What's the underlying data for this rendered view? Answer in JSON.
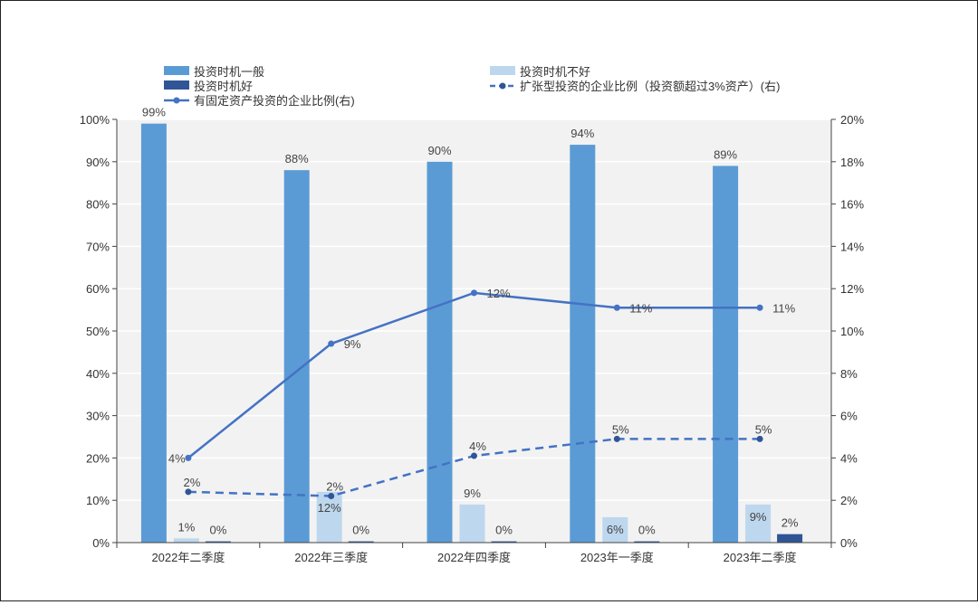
{
  "chart_data": {
    "type": "bar",
    "categories": [
      "2022年二季度",
      "2022年三季度",
      "2022年四季度",
      "2023年一季度",
      "2023年二季度"
    ],
    "series": [
      {
        "name": "投资时机一般",
        "kind": "bar",
        "axis": "left",
        "color": "#5b9bd5",
        "values": [
          99,
          88,
          90,
          94,
          89
        ],
        "labels": [
          "99%",
          "88%",
          "90%",
          "94%",
          "89%"
        ]
      },
      {
        "name": "投资时机不好",
        "kind": "bar",
        "axis": "left",
        "color": "#bdd7ee",
        "values": [
          1,
          12,
          9,
          6,
          9
        ],
        "labels": [
          "1%",
          "12%",
          "9%",
          "6%",
          "9%"
        ]
      },
      {
        "name": "投资时机好",
        "kind": "bar",
        "axis": "left",
        "color": "#2f5597",
        "values": [
          0.3,
          0.3,
          0.3,
          0.3,
          2
        ],
        "labels": [
          "0%",
          "0%",
          "0%",
          "0%",
          "2%"
        ]
      },
      {
        "name": "有固定资产投资的企业比例(右)",
        "kind": "line",
        "axis": "right",
        "color": "#4472c4",
        "dashed": false,
        "values": [
          4.0,
          9.4,
          11.8,
          11.1,
          11.1
        ],
        "labels": [
          "4%",
          "9%",
          "12%",
          "11%",
          "11%"
        ]
      },
      {
        "name": "扩张型投资的企业比例（投资额超过3%资产）(右)",
        "kind": "line",
        "axis": "right",
        "color": "#4472c4",
        "dashed": true,
        "values": [
          2.4,
          2.2,
          4.1,
          4.9,
          4.9
        ],
        "labels": [
          "2%",
          "2%",
          "4%",
          "5%",
          "5%"
        ]
      }
    ],
    "left_axis": {
      "ylim": [
        0,
        100
      ],
      "ticks": [
        "0%",
        "10%",
        "20%",
        "30%",
        "40%",
        "50%",
        "60%",
        "70%",
        "80%",
        "90%",
        "100%"
      ]
    },
    "right_axis": {
      "ylim": [
        0,
        20
      ],
      "ticks": [
        "0%",
        "2%",
        "4%",
        "6%",
        "8%",
        "10%",
        "12%",
        "14%",
        "16%",
        "18%",
        "20%"
      ]
    },
    "legend_placement": "top",
    "grid": true,
    "plot_background": "#f2f2f2"
  }
}
